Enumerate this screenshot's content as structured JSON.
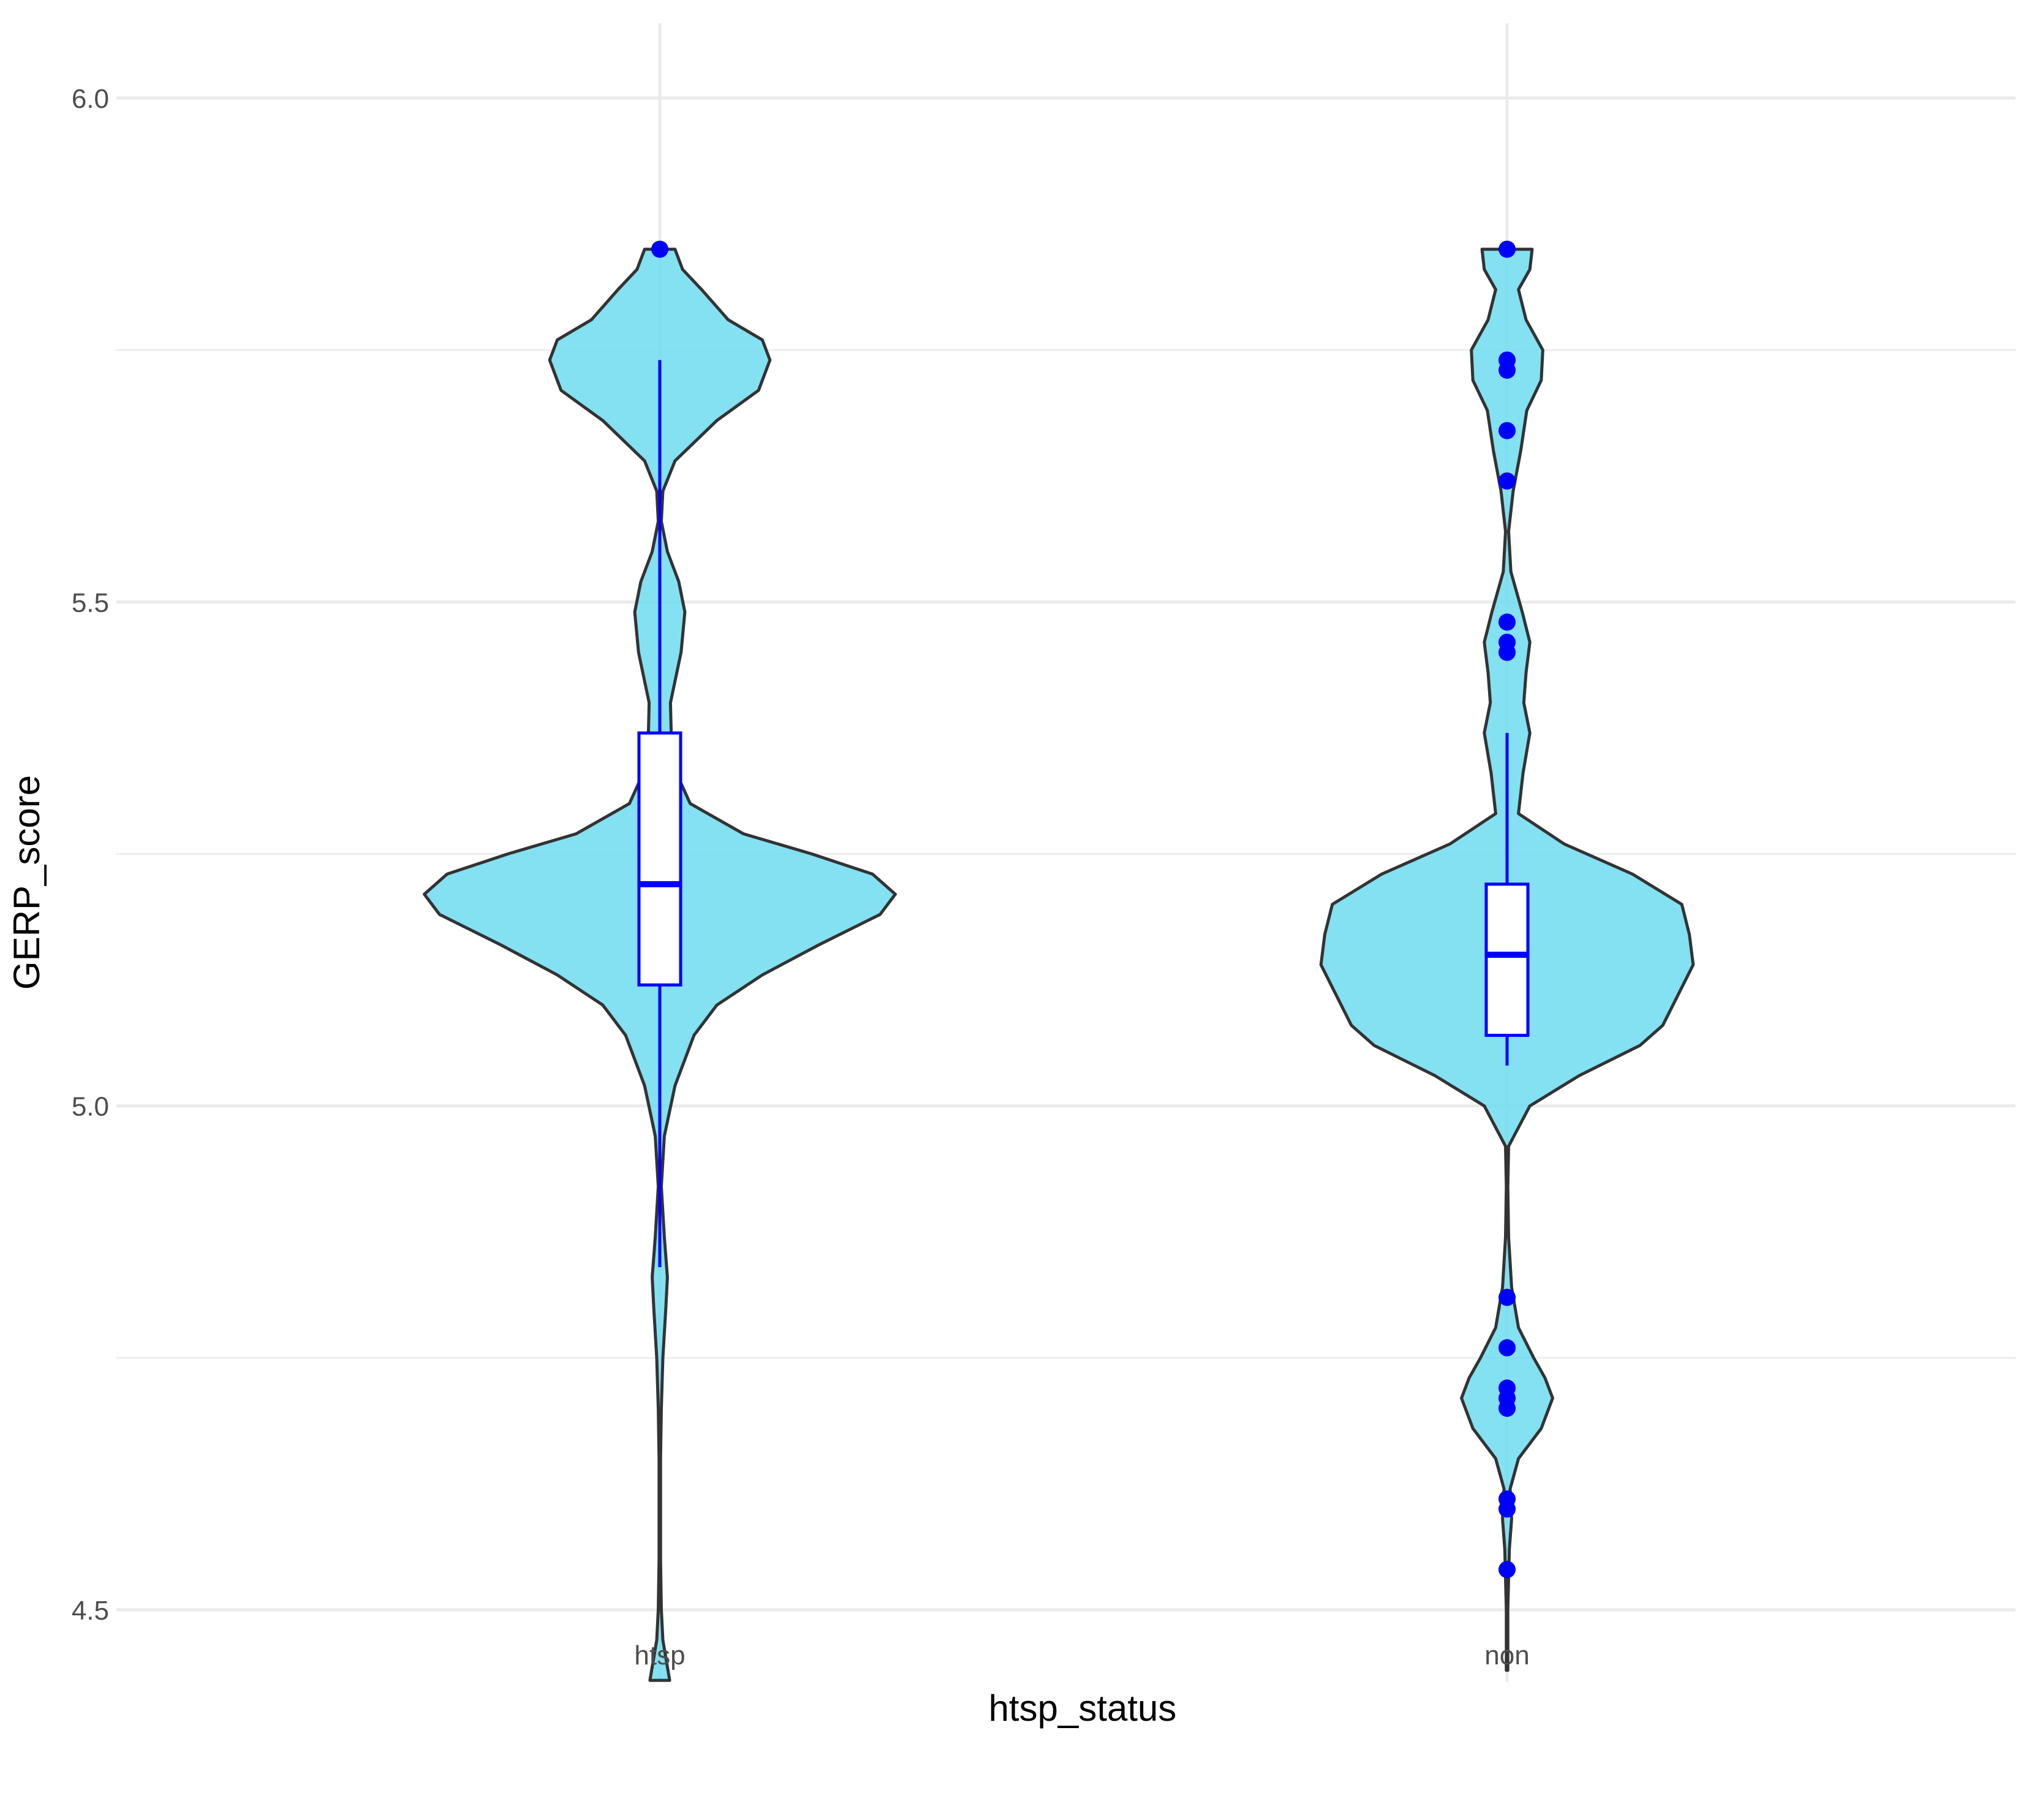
{
  "chart_data": {
    "type": "violin",
    "title": "",
    "xlabel": "htsp_status",
    "ylabel": "GERP_score",
    "categories": [
      "htsp",
      "non"
    ],
    "ylim": [
      4.43,
      6.07
    ],
    "y_ticks": [
      4.5,
      5.0,
      5.5,
      6.0
    ],
    "y_tick_labels": [
      "4.5",
      "5.0",
      "5.5",
      "6.0"
    ],
    "grid": true,
    "legend": "none",
    "colors": {
      "violin_fill": "#6ddcf0",
      "violin_outline": "#333333",
      "box_and_points": "#0000ff",
      "box_fill": "#ffffff",
      "grid": "#ebebeb"
    },
    "violins": [
      {
        "category": "htsp",
        "ymin": 4.43,
        "ymax": 5.85,
        "density_profile": [
          [
            4.43,
            0.026
          ],
          [
            4.47,
            0.008
          ],
          [
            4.5,
            0.004
          ],
          [
            4.55,
            0.002
          ],
          [
            4.65,
            0.002
          ],
          [
            4.7,
            0.004
          ],
          [
            4.75,
            0.008
          ],
          [
            4.8,
            0.016
          ],
          [
            4.83,
            0.02
          ],
          [
            4.87,
            0.012
          ],
          [
            4.92,
            0.004
          ],
          [
            4.97,
            0.012
          ],
          [
            5.02,
            0.04
          ],
          [
            5.07,
            0.09
          ],
          [
            5.1,
            0.15
          ],
          [
            5.13,
            0.27
          ],
          [
            5.16,
            0.42
          ],
          [
            5.19,
            0.58
          ],
          [
            5.21,
            0.62
          ],
          [
            5.23,
            0.56
          ],
          [
            5.25,
            0.4
          ],
          [
            5.27,
            0.22
          ],
          [
            5.3,
            0.08
          ],
          [
            5.34,
            0.032
          ],
          [
            5.4,
            0.028
          ],
          [
            5.45,
            0.056
          ],
          [
            5.49,
            0.066
          ],
          [
            5.52,
            0.05
          ],
          [
            5.55,
            0.02
          ],
          [
            5.58,
            0.004
          ],
          [
            5.61,
            0.008
          ],
          [
            5.64,
            0.04
          ],
          [
            5.68,
            0.15
          ],
          [
            5.71,
            0.26
          ],
          [
            5.74,
            0.29
          ],
          [
            5.76,
            0.27
          ],
          [
            5.78,
            0.18
          ],
          [
            5.81,
            0.11
          ],
          [
            5.83,
            0.06
          ],
          [
            5.85,
            0.04
          ]
        ],
        "box": {
          "lower_whisker": 4.84,
          "q1": 5.12,
          "median": 5.22,
          "q3": 5.37,
          "upper_whisker": 5.74
        },
        "outliers": [
          5.85
        ]
      },
      {
        "category": "non",
        "ymin": 4.44,
        "ymax": 5.85,
        "density_profile": [
          [
            4.44,
            0.002
          ],
          [
            4.5,
            0.002
          ],
          [
            4.56,
            0.006
          ],
          [
            4.59,
            0.012
          ],
          [
            4.62,
            0.008
          ],
          [
            4.65,
            0.03
          ],
          [
            4.68,
            0.09
          ],
          [
            4.71,
            0.12
          ],
          [
            4.73,
            0.1
          ],
          [
            4.75,
            0.07
          ],
          [
            4.78,
            0.03
          ],
          [
            4.82,
            0.012
          ],
          [
            4.87,
            0.004
          ],
          [
            4.92,
            0.002
          ],
          [
            4.96,
            0.004
          ],
          [
            5.0,
            0.06
          ],
          [
            5.03,
            0.19
          ],
          [
            5.06,
            0.35
          ],
          [
            5.08,
            0.41
          ],
          [
            5.11,
            0.45
          ],
          [
            5.14,
            0.49
          ],
          [
            5.17,
            0.48
          ],
          [
            5.2,
            0.46
          ],
          [
            5.23,
            0.33
          ],
          [
            5.26,
            0.15
          ],
          [
            5.29,
            0.03
          ],
          [
            5.33,
            0.042
          ],
          [
            5.37,
            0.06
          ],
          [
            5.4,
            0.044
          ],
          [
            5.43,
            0.05
          ],
          [
            5.46,
            0.06
          ],
          [
            5.49,
            0.04
          ],
          [
            5.53,
            0.01
          ],
          [
            5.57,
            0.004
          ],
          [
            5.61,
            0.016
          ],
          [
            5.65,
            0.036
          ],
          [
            5.69,
            0.052
          ],
          [
            5.72,
            0.09
          ],
          [
            5.75,
            0.094
          ],
          [
            5.78,
            0.05
          ],
          [
            5.81,
            0.03
          ],
          [
            5.83,
            0.06
          ],
          [
            5.85,
            0.066
          ]
        ],
        "box": {
          "lower_whisker": 5.04,
          "q1": 5.07,
          "median": 5.15,
          "q3": 5.22,
          "upper_whisker": 5.37
        },
        "outliers": [
          4.54,
          4.6,
          4.61,
          4.7,
          4.71,
          4.72,
          4.76,
          4.81,
          5.45,
          5.46,
          5.48,
          5.62,
          5.67,
          5.73,
          5.74,
          5.85
        ]
      }
    ]
  }
}
